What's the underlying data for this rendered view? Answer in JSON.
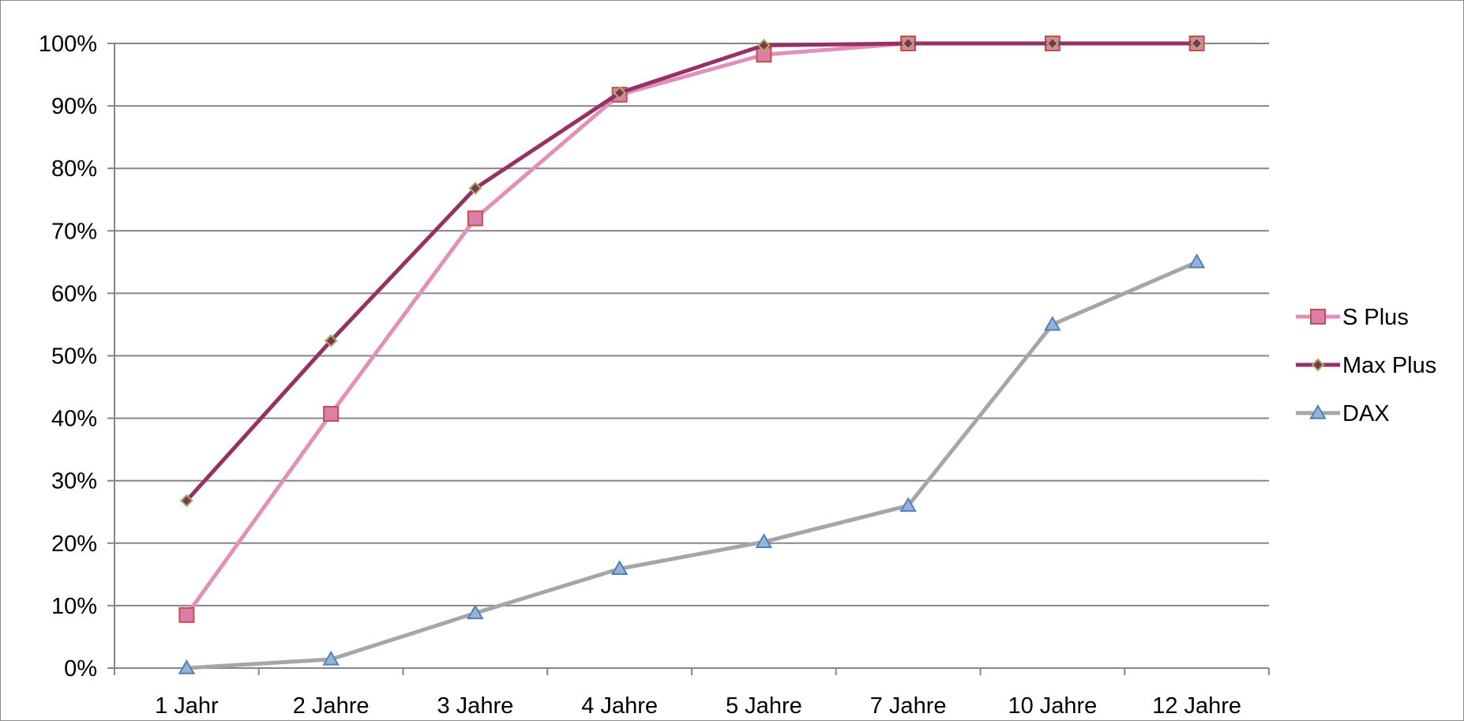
{
  "chart_data": {
    "type": "line",
    "categories": [
      "1 Jahr",
      "2 Jahre",
      "3 Jahre",
      "4 Jahre",
      "5 Jahre",
      "7 Jahre",
      "10 Jahre",
      "12 Jahre"
    ],
    "ylim": [
      0,
      100
    ],
    "yticks": [
      "0%",
      "10%",
      "20%",
      "30%",
      "40%",
      "50%",
      "60%",
      "70%",
      "80%",
      "90%",
      "100%"
    ],
    "grid": true,
    "legend_position": "right",
    "series": [
      {
        "name": "S Plus",
        "values": [
          8.5,
          40.7,
          72,
          91.8,
          98.2,
          100,
          100,
          100
        ],
        "color": "#e28fb9",
        "marker": "square",
        "marker_fill": "#dc7fa8",
        "marker_stroke": "#c0504d"
      },
      {
        "name": "Max Plus",
        "values": [
          26.8,
          52.4,
          76.8,
          92.1,
          99.7,
          100,
          100,
          100
        ],
        "color": "#953163",
        "marker": "diamond",
        "marker_fill": "#8b2e5b",
        "marker_stroke": "#9bbb59"
      },
      {
        "name": "DAX",
        "values": [
          0,
          1.4,
          8.8,
          15.9,
          20.2,
          26,
          55,
          65
        ],
        "color": "#a6a6a6",
        "marker": "triangle",
        "marker_fill": "#95b3d7",
        "marker_stroke": "#4f81bd"
      }
    ]
  }
}
